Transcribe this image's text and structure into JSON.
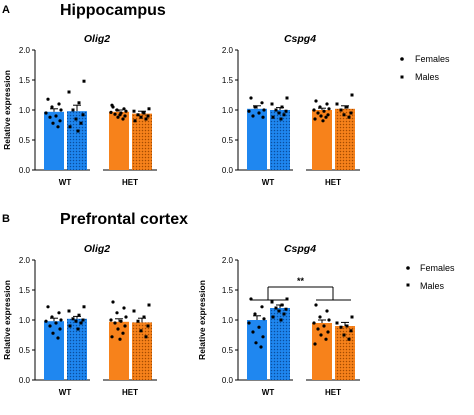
{
  "colors": {
    "wt": "#1f87f0",
    "het": "#f7821b",
    "axis": "#000000"
  },
  "legend": {
    "females": "Females",
    "males": "Males",
    "female_marker": "circle",
    "male_marker": "square"
  },
  "sections": [
    {
      "letter": "A",
      "title": "Hippocampus"
    },
    {
      "letter": "B",
      "title": "Prefrontal cortex"
    }
  ],
  "chart_data": [
    {
      "type": "bar",
      "title": "Olig2",
      "ylabel": "Relative expression",
      "ylim": [
        0,
        2.0
      ],
      "yticks": [
        "0.0",
        "0.5",
        "1.0",
        "1.5",
        "2.0"
      ],
      "groups": [
        "WT",
        "HET"
      ],
      "series": [
        {
          "name": "Females",
          "values": [
            0.97,
            0.97
          ],
          "sem": [
            0.05,
            0.03
          ],
          "points": [
            [
              1.18,
              1.1,
              1.05,
              1.0,
              0.95,
              0.9,
              0.88,
              0.82,
              0.78,
              0.72
            ],
            [
              1.05,
              1.02,
              1.0,
              0.98,
              0.96,
              0.95,
              0.93,
              0.9,
              0.88,
              0.85,
              1.08,
              0.92
            ]
          ]
        },
        {
          "name": "Males",
          "values": [
            0.98,
            0.94
          ],
          "sem": [
            0.1,
            0.04
          ],
          "points": [
            [
              1.48,
              1.3,
              1.12,
              1.0,
              0.92,
              0.85,
              0.78,
              0.72,
              0.65
            ],
            [
              1.02,
              0.98,
              0.95,
              0.92,
              0.9,
              0.88,
              0.85,
              0.82
            ]
          ]
        }
      ]
    },
    {
      "type": "bar",
      "title": "Cspg4",
      "ylabel": "",
      "ylim": [
        0,
        2.0
      ],
      "yticks": [
        "0.0",
        "0.5",
        "1.0",
        "1.5",
        "2.0"
      ],
      "groups": [
        "WT",
        "HET"
      ],
      "series": [
        {
          "name": "Females",
          "values": [
            1.02,
            1.0
          ],
          "sem": [
            0.05,
            0.03
          ],
          "points": [
            [
              1.2,
              1.12,
              1.05,
              1.0,
              0.98,
              0.95,
              0.9,
              0.88
            ],
            [
              1.15,
              1.1,
              1.05,
              1.02,
              1.0,
              0.98,
              0.95,
              0.92,
              0.9,
              0.88,
              0.85,
              0.82
            ]
          ]
        },
        {
          "name": "Males",
          "values": [
            1.0,
            1.02
          ],
          "sem": [
            0.04,
            0.05
          ],
          "points": [
            [
              1.2,
              1.1,
              1.05,
              1.0,
              0.98,
              0.95,
              0.92,
              0.88,
              0.85
            ],
            [
              1.25,
              1.1,
              1.05,
              1.0,
              0.95,
              0.92,
              0.88
            ]
          ]
        }
      ]
    },
    {
      "type": "bar",
      "title": "Olig2",
      "ylabel": "Relative expression",
      "ylim": [
        0,
        2.0
      ],
      "yticks": [
        "0.0",
        "0.5",
        "1.0",
        "1.5",
        "2.0"
      ],
      "groups": [
        "WT",
        "HET"
      ],
      "series": [
        {
          "name": "Females",
          "values": [
            0.98,
            0.97
          ],
          "sem": [
            0.05,
            0.05
          ],
          "points": [
            [
              1.22,
              1.12,
              1.05,
              1.0,
              0.98,
              0.95,
              0.9,
              0.85,
              0.78,
              0.7
            ],
            [
              1.3,
              1.2,
              1.12,
              1.05,
              1.0,
              0.98,
              0.95,
              0.9,
              0.85,
              0.78,
              0.72,
              0.68
            ]
          ]
        },
        {
          "name": "Males",
          "values": [
            1.02,
            0.96
          ],
          "sem": [
            0.04,
            0.07
          ],
          "points": [
            [
              1.22,
              1.15,
              1.08,
              1.02,
              1.0,
              0.98,
              0.95,
              0.9,
              0.85
            ],
            [
              1.25,
              1.15,
              1.05,
              0.98,
              0.9,
              0.82,
              0.72
            ]
          ]
        }
      ]
    },
    {
      "type": "bar",
      "title": "Cspg4",
      "ylabel": "Relative expression",
      "ylim": [
        0,
        2.0
      ],
      "yticks": [
        "0.0",
        "0.5",
        "1.0",
        "1.5",
        "2.0"
      ],
      "groups": [
        "WT",
        "HET"
      ],
      "series": [
        {
          "name": "Females",
          "values": [
            1.0,
            0.95
          ],
          "sem": [
            0.07,
            0.05
          ],
          "points": [
            [
              1.35,
              1.22,
              1.1,
              1.02,
              0.95,
              0.88,
              0.8,
              0.72,
              0.62,
              0.55
            ],
            [
              1.25,
              1.15,
              1.05,
              1.0,
              0.95,
              0.9,
              0.85,
              0.8,
              0.75,
              0.68,
              0.6
            ]
          ]
        },
        {
          "name": "Males",
          "values": [
            1.2,
            0.9
          ],
          "sem": [
            0.05,
            0.06
          ],
          "points": [
            [
              1.35,
              1.3,
              1.25,
              1.2,
              1.18,
              1.15,
              1.1,
              1.05,
              1.0
            ],
            [
              1.05,
              0.95,
              0.9,
              0.88,
              0.82,
              0.75,
              0.68
            ]
          ]
        }
      ],
      "annotation": {
        "text": "**",
        "between": [
          "WT",
          "HET"
        ]
      }
    }
  ]
}
